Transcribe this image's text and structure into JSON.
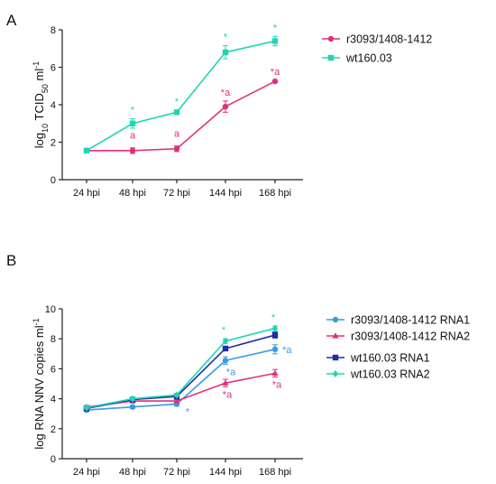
{
  "chart_data": [
    {
      "panel_label": "A",
      "type": "line",
      "categories": [
        "24 hpi",
        "48 hpi",
        "72 hpi",
        "144 hpi",
        "168 hpi"
      ],
      "ylabel_main": "log",
      "ylabel_sub": "10",
      "ylabel_mid": " TCID",
      "ylabel_sub2": "50",
      "ylabel_end": " ml",
      "ylabel_sup": "-1",
      "ylim": [
        0,
        8
      ],
      "yticks": [
        "0",
        "2",
        "4",
        "6",
        "8"
      ],
      "legend_position": "right",
      "series": [
        {
          "name": "r3093/1408-1412",
          "color": "#e0307c",
          "marker": "circle",
          "values": [
            1.55,
            1.55,
            1.65,
            3.9,
            5.25
          ],
          "errors": [
            0.12,
            0.15,
            0.15,
            0.3,
            0.05
          ],
          "annotations": [
            "",
            "a",
            "a",
            "*a",
            "*a"
          ]
        },
        {
          "name": "wt160.03",
          "color": "#1fd6b4",
          "marker": "square",
          "values": [
            1.55,
            3.0,
            3.6,
            6.8,
            7.4
          ],
          "errors": [
            0.12,
            0.25,
            0.12,
            0.35,
            0.25
          ],
          "annotations": [
            "",
            "*",
            "*",
            "*",
            "*"
          ]
        }
      ]
    },
    {
      "panel_label": "B",
      "type": "line",
      "categories": [
        "24 hpi",
        "48 hpi",
        "72 hpi",
        "144 hpi",
        "168 hpi"
      ],
      "ylabel_main": "log RNA NNV copies ml",
      "ylabel_sup": "-1",
      "ylim": [
        0,
        10
      ],
      "yticks": [
        "0",
        "2",
        "4",
        "6",
        "8",
        "10"
      ],
      "legend_position": "right",
      "series": [
        {
          "name": "r3093/1408-1412 RNA1",
          "color": "#3b9be0",
          "marker": "circle",
          "values": [
            3.25,
            3.45,
            3.65,
            6.55,
            7.3
          ],
          "errors": [
            0.1,
            0.1,
            0.15,
            0.25,
            0.3
          ],
          "annotations": [
            "",
            "",
            "*",
            "*a",
            "*a"
          ]
        },
        {
          "name": "r3093/1408-1412 RNA2",
          "color": "#e0307c",
          "marker": "triangle",
          "values": [
            3.45,
            3.85,
            3.85,
            5.05,
            5.7
          ],
          "errors": [
            0.1,
            0.1,
            0.1,
            0.25,
            0.25
          ],
          "annotations": [
            "",
            "",
            "",
            "*a",
            "*a"
          ]
        },
        {
          "name": "wt160.03 RNA1",
          "color": "#1a2fa8",
          "marker": "square",
          "values": [
            3.35,
            3.95,
            4.15,
            7.35,
            8.25
          ],
          "errors": [
            0.1,
            0.1,
            0.1,
            0.15,
            0.2
          ],
          "annotations": [
            "",
            "",
            "",
            "",
            ""
          ]
        },
        {
          "name": "wt160.03 RNA2",
          "color": "#1fd6b4",
          "marker": "diamond",
          "values": [
            3.4,
            4.0,
            4.25,
            7.85,
            8.7
          ],
          "errors": [
            0.1,
            0.1,
            0.1,
            0.15,
            0.15
          ],
          "annotations": [
            "",
            "",
            "",
            "*",
            "*"
          ]
        }
      ]
    }
  ]
}
